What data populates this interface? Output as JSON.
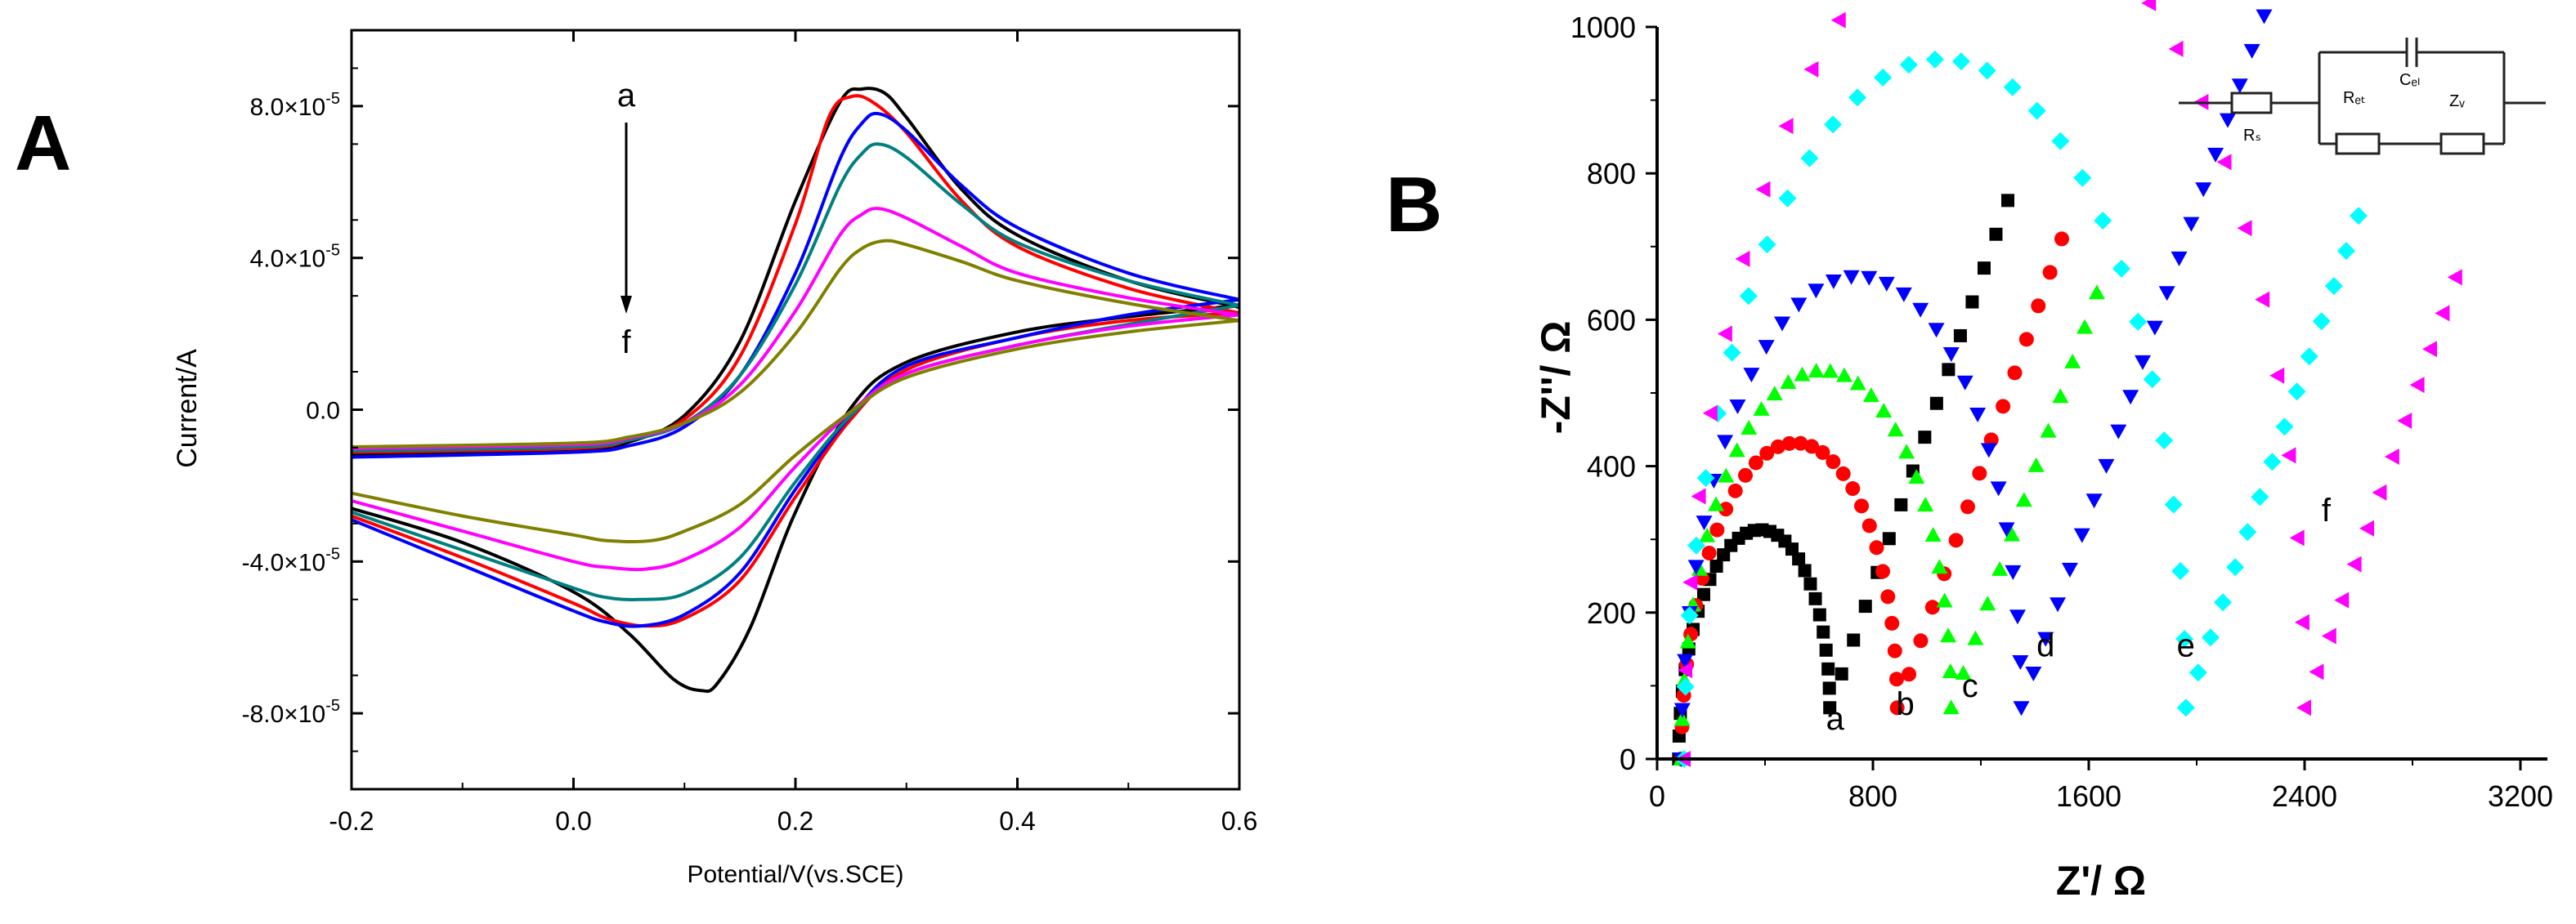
{
  "chart_data": [
    {
      "panel": "A",
      "type": "line",
      "xlabel": "Potential/V(vs.SCE)",
      "ylabel": "Current/A",
      "xlim": [
        -0.2,
        0.6
      ],
      "ylim": [
        -0.0001,
        0.0001
      ],
      "xticks": [
        -0.2,
        0.0,
        0.2,
        0.4,
        0.6
      ],
      "xtick_labels": [
        "-0.2",
        "0.0",
        "0.2",
        "0.4",
        "0.6"
      ],
      "yticks": [
        -8e-05,
        -4e-05,
        0.0,
        4e-05,
        8e-05
      ],
      "ytick_labels": [
        {
          "mant": "-8.0×10",
          "exp": "-5"
        },
        {
          "mant": "-4.0×10",
          "exp": "-5"
        },
        {
          "mant": "0.0",
          "exp": ""
        },
        {
          "mant": "4.0×10",
          "exp": "-5"
        },
        {
          "mant": "8.0×10",
          "exp": "-5"
        }
      ],
      "annotation": {
        "start": "a",
        "end": "f"
      },
      "series": [
        {
          "name": "a",
          "color": "#000000",
          "anodic": [
            [
              -0.2,
              -1.18e-05
            ],
            [
              0.0,
              -1.08e-05
            ],
            [
              0.05,
              -8.5e-06
            ],
            [
              0.1,
              -1.5e-06
            ],
            [
              0.15,
              1.8e-05
            ],
            [
              0.2,
              5.5e-05
            ],
            [
              0.24,
              8.1e-05
            ],
            [
              0.26,
              8.45e-05
            ],
            [
              0.28,
              8.35e-05
            ],
            [
              0.3,
              7.7e-05
            ],
            [
              0.35,
              5.8e-05
            ],
            [
              0.4,
              4.6e-05
            ],
            [
              0.5,
              3.4e-05
            ],
            [
              0.6,
              2.7e-05
            ]
          ],
          "cathodic": [
            [
              0.6,
              2.75e-05
            ],
            [
              0.5,
              2.45e-05
            ],
            [
              0.4,
              2.05e-05
            ],
            [
              0.3,
              1.25e-05
            ],
            [
              0.25,
              5e-07
            ],
            [
              0.2,
              -2.7e-05
            ],
            [
              0.16,
              -5.7e-05
            ],
            [
              0.13,
              -7.2e-05
            ],
            [
              0.115,
              -7.4e-05
            ],
            [
              0.09,
              -7.1e-05
            ],
            [
              0.05,
              -5.9e-05
            ],
            [
              0.0,
              -4.8e-05
            ],
            [
              -0.1,
              -3.5e-05
            ],
            [
              -0.2,
              -2.6e-05
            ]
          ]
        },
        {
          "name": "b",
          "color": "#ff0000",
          "anodic": [
            [
              -0.2,
              -1.12e-05
            ],
            [
              0.0,
              -1.02e-05
            ],
            [
              0.05,
              -8e-06
            ],
            [
              0.1,
              -2.5e-06
            ],
            [
              0.15,
              1.4e-05
            ],
            [
              0.2,
              4.9e-05
            ],
            [
              0.23,
              7.7e-05
            ],
            [
              0.25,
              8.25e-05
            ],
            [
              0.27,
              8.1e-05
            ],
            [
              0.3,
              7.3e-05
            ],
            [
              0.35,
              5.5e-05
            ],
            [
              0.4,
              4.3e-05
            ],
            [
              0.5,
              3.2e-05
            ],
            [
              0.6,
              2.55e-05
            ]
          ],
          "cathodic": [
            [
              0.6,
              2.55e-05
            ],
            [
              0.5,
              2.35e-05
            ],
            [
              0.4,
              1.9e-05
            ],
            [
              0.3,
              1.05e-05
            ],
            [
              0.25,
              -2.5e-06
            ],
            [
              0.2,
              -2.3e-05
            ],
            [
              0.15,
              -4.5e-05
            ],
            [
              0.1,
              -5.5e-05
            ],
            [
              0.065,
              -5.7e-05
            ],
            [
              0.03,
              -5.5e-05
            ],
            [
              0.0,
              -5.1e-05
            ],
            [
              -0.1,
              -3.9e-05
            ],
            [
              -0.2,
              -2.8e-05
            ]
          ]
        },
        {
          "name": "c",
          "color": "#0000ff",
          "anodic": [
            [
              -0.2,
              -1.25e-05
            ],
            [
              0.0,
              -1.12e-05
            ],
            [
              0.05,
              -9.5e-06
            ],
            [
              0.1,
              -4.5e-06
            ],
            [
              0.15,
              9e-06
            ],
            [
              0.2,
              3.6e-05
            ],
            [
              0.24,
              6.6e-05
            ],
            [
              0.26,
              7.55e-05
            ],
            [
              0.275,
              7.8e-05
            ],
            [
              0.3,
              7.35e-05
            ],
            [
              0.35,
              5.9e-05
            ],
            [
              0.4,
              4.8e-05
            ],
            [
              0.5,
              3.6e-05
            ],
            [
              0.6,
              2.9e-05
            ]
          ],
          "cathodic": [
            [
              0.6,
              2.9e-05
            ],
            [
              0.5,
              2.5e-05
            ],
            [
              0.4,
              1.9e-05
            ],
            [
              0.3,
              1.15e-05
            ],
            [
              0.25,
              -1.5e-06
            ],
            [
              0.2,
              -2.1e-05
            ],
            [
              0.15,
              -4.3e-05
            ],
            [
              0.1,
              -5.4e-05
            ],
            [
              0.06,
              -5.7e-05
            ],
            [
              0.03,
              -5.6e-05
            ],
            [
              0.0,
              -5.3e-05
            ],
            [
              -0.1,
              -4.1e-05
            ],
            [
              -0.2,
              -2.9e-05
            ]
          ]
        },
        {
          "name": "d",
          "color": "#008080",
          "anodic": [
            [
              -0.2,
              -1.08e-05
            ],
            [
              0.0,
              -9.8e-06
            ],
            [
              0.05,
              -8e-06
            ],
            [
              0.1,
              -3.5e-06
            ],
            [
              0.15,
              9e-06
            ],
            [
              0.2,
              3.3e-05
            ],
            [
              0.24,
              5.9e-05
            ],
            [
              0.26,
              6.75e-05
            ],
            [
              0.275,
              7e-05
            ],
            [
              0.3,
              6.65e-05
            ],
            [
              0.35,
              5.4e-05
            ],
            [
              0.4,
              4.4e-05
            ],
            [
              0.5,
              3.4e-05
            ],
            [
              0.6,
              2.75e-05
            ]
          ],
          "cathodic": [
            [
              0.6,
              2.75e-05
            ],
            [
              0.5,
              2.25e-05
            ],
            [
              0.4,
              1.7e-05
            ],
            [
              0.3,
              9.5e-06
            ],
            [
              0.25,
              -1.5e-06
            ],
            [
              0.2,
              -1.9e-05
            ],
            [
              0.15,
              -3.9e-05
            ],
            [
              0.1,
              -4.85e-05
            ],
            [
              0.06,
              -5e-05
            ],
            [
              0.03,
              -4.95e-05
            ],
            [
              0.0,
              -4.7e-05
            ],
            [
              -0.1,
              -3.7e-05
            ],
            [
              -0.2,
              -2.7e-05
            ]
          ]
        },
        {
          "name": "e",
          "color": "#ff00ff",
          "anodic": [
            [
              -0.2,
              -1.02e-05
            ],
            [
              0.0,
              -9.2e-06
            ],
            [
              0.05,
              -7.5e-06
            ],
            [
              0.1,
              -3.5e-06
            ],
            [
              0.15,
              6.5e-06
            ],
            [
              0.2,
              2.6e-05
            ],
            [
              0.24,
              4.6e-05
            ],
            [
              0.26,
              5.15e-05
            ],
            [
              0.275,
              5.3e-05
            ],
            [
              0.3,
              5.05e-05
            ],
            [
              0.35,
              4.3e-05
            ],
            [
              0.4,
              3.6e-05
            ],
            [
              0.5,
              2.95e-05
            ],
            [
              0.6,
              2.5e-05
            ]
          ],
          "cathodic": [
            [
              0.6,
              2.5e-05
            ],
            [
              0.5,
              2.2e-05
            ],
            [
              0.4,
              1.7e-05
            ],
            [
              0.3,
              9.5e-06
            ],
            [
              0.25,
              -5e-07
            ],
            [
              0.2,
              -1.5e-05
            ],
            [
              0.15,
              -3.1e-05
            ],
            [
              0.1,
              -3.95e-05
            ],
            [
              0.065,
              -4.2e-05
            ],
            [
              0.03,
              -4.15e-05
            ],
            [
              0.0,
              -4e-05
            ],
            [
              -0.1,
              -3.2e-05
            ],
            [
              -0.2,
              -2.4e-05
            ]
          ]
        },
        {
          "name": "f",
          "color": "#808000",
          "anodic": [
            [
              -0.2,
              -9.8e-06
            ],
            [
              0.0,
              -8.8e-06
            ],
            [
              0.05,
              -7.2e-06
            ],
            [
              0.1,
              -3.5e-06
            ],
            [
              0.15,
              4.5e-06
            ],
            [
              0.2,
              2e-05
            ],
            [
              0.24,
              3.7e-05
            ],
            [
              0.26,
              4.25e-05
            ],
            [
              0.28,
              4.45e-05
            ],
            [
              0.3,
              4.35e-05
            ],
            [
              0.35,
              3.9e-05
            ],
            [
              0.4,
              3.4e-05
            ],
            [
              0.5,
              2.8e-05
            ],
            [
              0.6,
              2.35e-05
            ]
          ],
          "cathodic": [
            [
              0.6,
              2.35e-05
            ],
            [
              0.5,
              2.05e-05
            ],
            [
              0.4,
              1.6e-05
            ],
            [
              0.3,
              8.5e-06
            ],
            [
              0.25,
              -5e-07
            ],
            [
              0.2,
              -1.2e-05
            ],
            [
              0.15,
              -2.5e-05
            ],
            [
              0.1,
              -3.2e-05
            ],
            [
              0.07,
              -3.45e-05
            ],
            [
              0.03,
              -3.45e-05
            ],
            [
              0.0,
              -3.3e-05
            ],
            [
              -0.1,
              -2.8e-05
            ],
            [
              -0.2,
              -2.2e-05
            ]
          ]
        }
      ]
    },
    {
      "panel": "B",
      "type": "scatter",
      "xlabel": "Z'/ Ω",
      "ylabel": "-Z''/ Ω",
      "xlim": [
        0,
        3300
      ],
      "ylim": [
        0,
        1000
      ],
      "xticks": [
        0,
        800,
        1600,
        2400,
        3200
      ],
      "xtick_labels": [
        "0",
        "800",
        "1600",
        "2400",
        "3200"
      ],
      "yticks": [
        0,
        200,
        400,
        600,
        800,
        1000
      ],
      "ytick_labels": [
        "0",
        "200",
        "400",
        "600",
        "800",
        "1000"
      ],
      "circuit_labels": {
        "rs": "Rₛ",
        "rct": "Rₑₜ",
        "cdl": "Cₑₗ",
        "zw": "Zᵥ"
      },
      "series": [
        {
          "name": "a",
          "color": "#000000",
          "marker": "square",
          "rs": 80,
          "rct": 560,
          "tail_end": 1300,
          "label": "a",
          "label_x": 660,
          "label_y": 40
        },
        {
          "name": "b",
          "color": "#ff0000",
          "marker": "circle",
          "rs": 90,
          "rct": 800,
          "tail_end": 1500,
          "label": "b",
          "label_x": 920,
          "label_y": 60
        },
        {
          "name": "c",
          "color": "#00ff00",
          "marker": "triangle-up",
          "rs": 90,
          "rct": 1000,
          "tail_end": 1630,
          "label": "c",
          "label_x": 1160,
          "label_y": 85
        },
        {
          "name": "d",
          "color": "#0000ff",
          "marker": "triangle-down",
          "rs": 90,
          "rct": 1260,
          "tail_end": 2340,
          "label": "d",
          "label_x": 1440,
          "label_y": 140
        },
        {
          "name": "e",
          "color": "#00ffff",
          "marker": "diamond",
          "rs": 100,
          "rct": 1860,
          "tail_end": 2600,
          "label": "e",
          "label_x": 1960,
          "label_y": 140
        },
        {
          "name": "f",
          "color": "#ff00ff",
          "marker": "triangle-left",
          "rs": 100,
          "rct": 2300,
          "tail_end": 2960,
          "label": "f",
          "label_x": 2480,
          "label_y": 325
        }
      ]
    }
  ],
  "panel_labels": {
    "a": "A",
    "b": "B"
  }
}
